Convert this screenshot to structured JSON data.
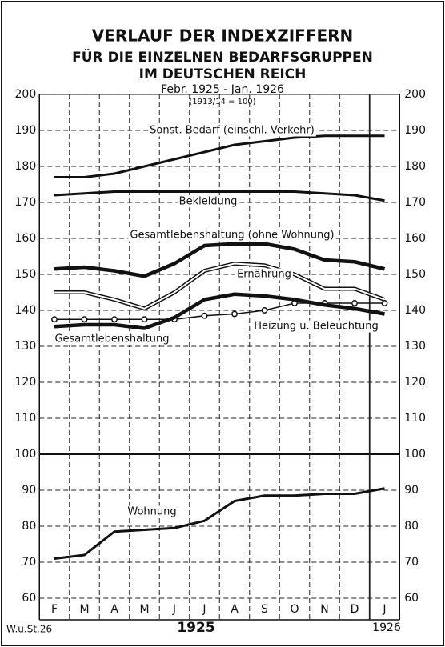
{
  "chart_data": {
    "type": "line",
    "title": [
      "VERLAUF DER INDEXZIFFERN",
      "FÜR DIE EINZELNEN BEDARFSGRUPPEN",
      "IM DEUTSCHEN REICH"
    ],
    "subtitle": [
      "Febr. 1925 - Jan. 1926",
      "(1913/14 = 100)"
    ],
    "categories": [
      "F",
      "M",
      "A",
      "M",
      "J",
      "J",
      "A",
      "S",
      "O",
      "N",
      "D",
      "J"
    ],
    "years": [
      "1925",
      "1926"
    ],
    "source": "W.u.St.26",
    "ylim": [
      60,
      200
    ],
    "yticks": [
      60,
      70,
      80,
      90,
      100,
      110,
      120,
      130,
      140,
      150,
      160,
      170,
      180,
      190,
      200
    ],
    "reference_line": 100,
    "grid": true,
    "series": [
      {
        "name": "Sonst. Bedarf (einschl. Verkehr)",
        "color": "#111",
        "style": "solid",
        "values": [
          177,
          177,
          178,
          180,
          182,
          184,
          186,
          187,
          188,
          188.5,
          188.5,
          188.5
        ]
      },
      {
        "name": "Bekleidung",
        "color": "#111",
        "style": "solid",
        "values": [
          172,
          172.5,
          173,
          173,
          173,
          173,
          173,
          173,
          173,
          172.5,
          172,
          170.5
        ]
      },
      {
        "name": "Gesamtlebenshaltung (ohne Wohnung)",
        "color": "#111",
        "style": "bold",
        "values": [
          151.5,
          152,
          151,
          149.5,
          153,
          158,
          158.5,
          158.5,
          157,
          154,
          153.5,
          151.5
        ]
      },
      {
        "name": "Ernährung",
        "color": "#111",
        "style": "double",
        "values": [
          145,
          145,
          143,
          140.5,
          145,
          151,
          153,
          152.5,
          150,
          146,
          146,
          143
        ]
      },
      {
        "name": "Heizung u. Beleuchtung",
        "color": "#111",
        "style": "circles",
        "values": [
          137.5,
          137.5,
          137.5,
          137.5,
          137.5,
          138.5,
          139,
          140,
          142,
          142,
          142,
          142
        ]
      },
      {
        "name": "Gesamtlebenshaltung",
        "color": "#111",
        "style": "bold",
        "values": [
          135.5,
          136,
          136,
          135,
          138,
          143,
          144.5,
          144,
          143,
          141.5,
          140.5,
          139
        ]
      },
      {
        "name": "Wohnung",
        "color": "#111",
        "style": "solid",
        "values": [
          71,
          72,
          78.5,
          79,
          79.5,
          81.5,
          87,
          88.5,
          88.5,
          89,
          89,
          90.5
        ]
      }
    ]
  }
}
